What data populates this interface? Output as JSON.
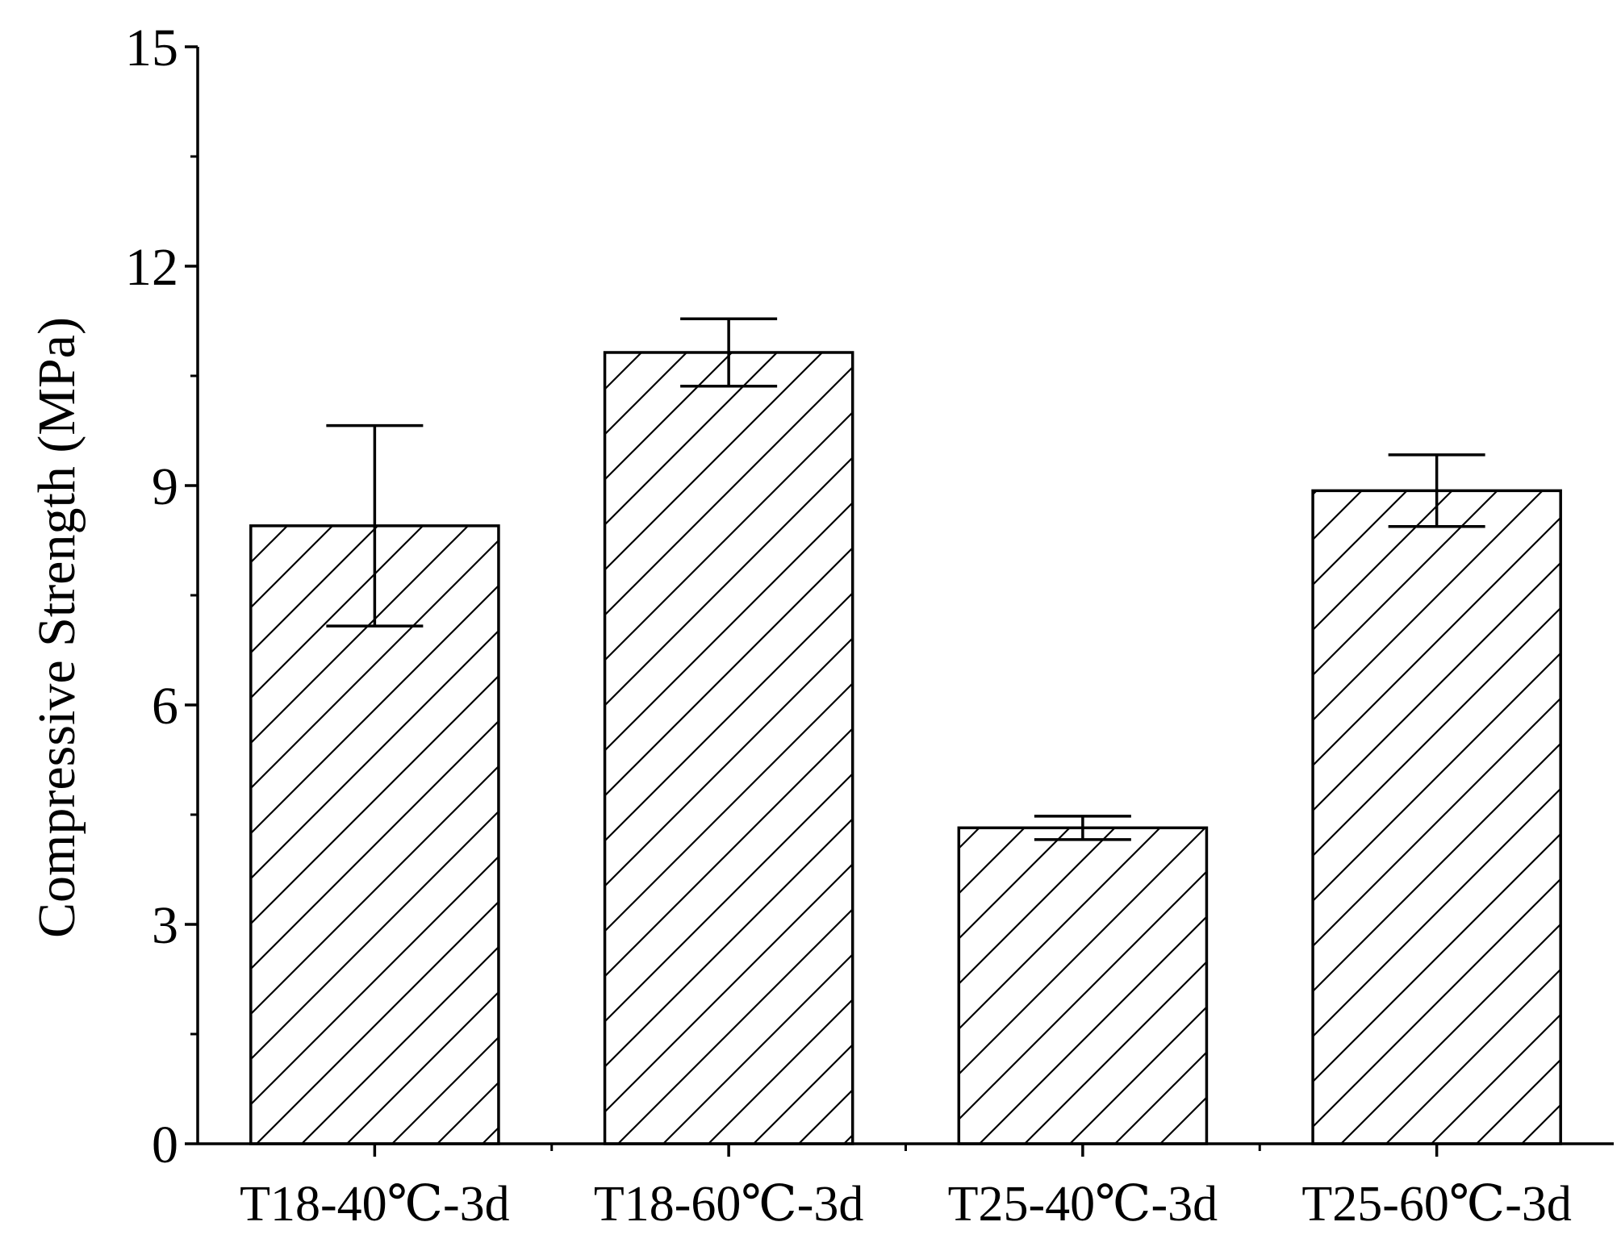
{
  "chart_data": {
    "type": "bar",
    "title": "",
    "xlabel": "",
    "ylabel": "Compressive Strength (MPa)",
    "categories": [
      "T18-40℃-3d",
      "T18-60℃-3d",
      "T25-40℃-3d",
      "T25-60℃-3d"
    ],
    "values": [
      8.45,
      10.82,
      4.32,
      8.93
    ],
    "error_upper": [
      9.82,
      11.28,
      4.48,
      9.42
    ],
    "error_lower": [
      7.08,
      10.36,
      4.16,
      8.44
    ],
    "ylim": [
      0,
      15
    ],
    "yticks": [
      0,
      3,
      6,
      9,
      12,
      15
    ],
    "ytick_labels": [
      "0",
      "3",
      "6",
      "9",
      "12",
      "15"
    ],
    "bar_fill": "hatched diagonal",
    "grid": false,
    "legend": "none",
    "colors": {
      "stroke": "#000000",
      "fill": "#ffffff"
    }
  }
}
